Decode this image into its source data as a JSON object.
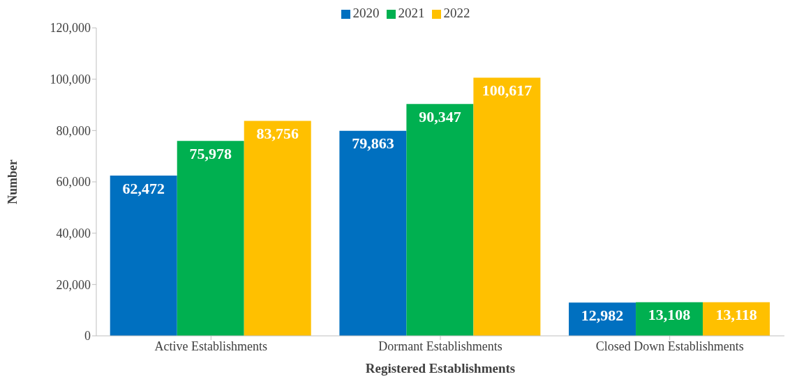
{
  "chart_data": {
    "type": "bar",
    "xlabel": "Registered Establishments",
    "ylabel": "Number",
    "categories": [
      "Active Establishments",
      "Dormant Establishments",
      "Closed Down Establishments"
    ],
    "series": [
      {
        "name": "2020",
        "color": "#0070c0",
        "values": [
          62472,
          79863,
          12982
        ],
        "value_labels": [
          "62,472",
          "79,863",
          "12,982"
        ]
      },
      {
        "name": "2021",
        "color": "#00b050",
        "values": [
          75978,
          90347,
          13108
        ],
        "value_labels": [
          "75,978",
          "90,347",
          "13,108"
        ]
      },
      {
        "name": "2022",
        "color": "#ffc000",
        "values": [
          83756,
          100617,
          13118
        ],
        "value_labels": [
          "83,756",
          "100,617",
          "13,118"
        ]
      }
    ],
    "ylim": [
      0,
      120000
    ],
    "yticks": [
      0,
      {
        "value": 20000,
        "label": "20,000"
      },
      {
        "value": 40000,
        "label": "40,000"
      },
      {
        "value": 60000,
        "label": "60,000"
      },
      {
        "value": 80000,
        "label": "80,000"
      },
      {
        "value": 100000,
        "label": "100,000"
      },
      {
        "value": 120000,
        "label": "120,000"
      }
    ],
    "grid": false,
    "legend": "top"
  }
}
